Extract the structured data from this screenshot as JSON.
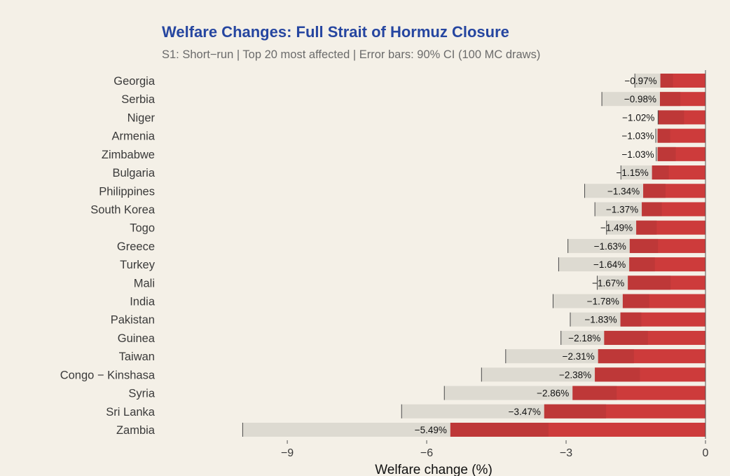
{
  "colors": {
    "title": "#2646a0",
    "bar": "#cd3b3b",
    "bar_inner": "#b83838",
    "ci_band": "#dddad1",
    "ci_tick": "#4a4a4a",
    "background": "#f4f0e7"
  },
  "chart_data": {
    "type": "bar",
    "orientation": "horizontal",
    "title": "Welfare Changes: Full Strait of Hormuz Closure",
    "subtitle": "S1: Short−run | Top 20 most affected | Error bars: 90% CI (100 MC draws)",
    "xlabel": "Welfare change (%)",
    "ylabel": "",
    "xlim": [
      -11.7,
      0
    ],
    "xticks": [
      -9,
      -6,
      -3,
      0
    ],
    "xtick_labels": [
      "−9",
      "−6",
      "−3",
      "0"
    ],
    "grid": false,
    "categories": [
      "Georgia",
      "Serbia",
      "Niger",
      "Armenia",
      "Zimbabwe",
      "Bulgaria",
      "Philippines",
      "South Korea",
      "Togo",
      "Greece",
      "Turkey",
      "Mali",
      "India",
      "Pakistan",
      "Guinea",
      "Taiwan",
      "Congo − Kinshasa",
      "Syria",
      "Sri Lanka",
      "Zambia"
    ],
    "values": [
      -0.97,
      -0.98,
      -1.02,
      -1.03,
      -1.03,
      -1.15,
      -1.34,
      -1.37,
      -1.49,
      -1.63,
      -1.64,
      -1.67,
      -1.78,
      -1.83,
      -2.18,
      -2.31,
      -2.38,
      -2.86,
      -3.47,
      -5.49
    ],
    "value_labels": [
      "−0.97%",
      "−0.98%",
      "−1.02%",
      "−1.03%",
      "−1.03%",
      "−1.15%",
      "−1.34%",
      "−1.37%",
      "−1.49%",
      "−1.63%",
      "−1.64%",
      "−1.67%",
      "−1.78%",
      "−1.83%",
      "−2.18%",
      "−2.31%",
      "−2.38%",
      "−2.86%",
      "−3.47%",
      "−5.49%"
    ],
    "ci_low": [
      -1.52,
      -2.23,
      -1.02,
      -1.07,
      -1.06,
      -1.82,
      -2.6,
      -2.38,
      -2.13,
      -2.96,
      -3.16,
      -2.33,
      -3.28,
      -2.91,
      -3.11,
      -4.3,
      -4.82,
      -5.62,
      -6.54,
      -9.96
    ],
    "ci_high": [
      -0.7,
      -0.54,
      -0.46,
      -0.76,
      -0.64,
      -0.79,
      -0.86,
      -0.94,
      -1.05,
      -1.02,
      -1.09,
      -0.75,
      -1.21,
      -1.38,
      -1.24,
      -1.54,
      -1.41,
      -1.91,
      -2.14,
      -3.38
    ]
  }
}
